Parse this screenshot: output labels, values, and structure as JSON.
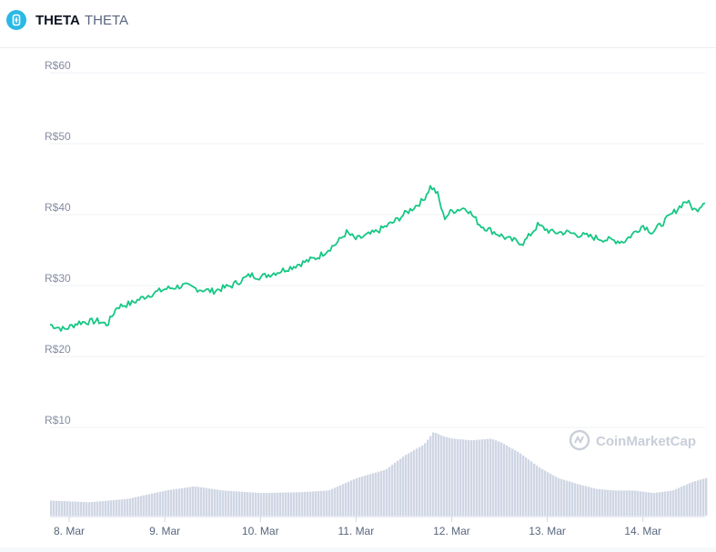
{
  "header": {
    "name": "THETA",
    "symbol": "THETA",
    "logo_icon": "theta-token-icon",
    "logo_color": "#2ab8e6"
  },
  "watermark": {
    "text": "CoinMarketCap",
    "icon": "coinmarketcap-logo-icon"
  },
  "chart_data": {
    "type": "line",
    "y_axis": {
      "ticks": [
        "R$60",
        "R$50",
        "R$40",
        "R$30",
        "R$20",
        "R$10"
      ],
      "ylim": [
        10,
        60
      ],
      "currency": "R$"
    },
    "x_axis": {
      "ticks": [
        "8. Mar",
        "9. Mar",
        "10. Mar",
        "11. Mar",
        "12. Mar",
        "13. Mar",
        "14. Mar"
      ],
      "range_days": [
        7.8,
        14.65
      ]
    },
    "grid": true,
    "colors": {
      "price_line": "#16c784",
      "volume_bars": "#cfd6e4",
      "gridline": "#eff2f5"
    },
    "series": [
      {
        "name": "Price",
        "x": [
          7.8,
          7.95,
          8.1,
          8.3,
          8.4,
          8.5,
          8.65,
          8.8,
          9.0,
          9.2,
          9.35,
          9.5,
          9.7,
          9.9,
          10.0,
          10.2,
          10.4,
          10.6,
          10.8,
          10.9,
          11.0,
          11.2,
          11.4,
          11.55,
          11.7,
          11.78,
          11.85,
          11.92,
          12.0,
          12.15,
          12.3,
          12.45,
          12.6,
          12.75,
          12.9,
          13.05,
          13.2,
          13.4,
          13.6,
          13.8,
          14.0,
          14.1,
          14.3,
          14.45,
          14.55,
          14.65
        ],
        "y": [
          24.5,
          23.8,
          24.8,
          25.0,
          24.5,
          27.0,
          27.5,
          28.5,
          29.5,
          30.0,
          29.5,
          29.2,
          30.0,
          31.5,
          31.2,
          32.0,
          33.0,
          34.0,
          36.0,
          37.5,
          36.5,
          37.5,
          39.0,
          40.5,
          42.0,
          44.0,
          43.0,
          39.5,
          40.5,
          41.0,
          38.5,
          37.5,
          36.5,
          36.0,
          38.5,
          37.5,
          37.5,
          37.0,
          36.5,
          36.2,
          38.5,
          37.5,
          40.0,
          42.0,
          40.5,
          42.0
        ]
      }
    ],
    "volume_series": {
      "name": "Volume",
      "x": [
        7.8,
        8.2,
        8.6,
        9.0,
        9.3,
        9.6,
        10.0,
        10.4,
        10.7,
        11.0,
        11.3,
        11.5,
        11.7,
        11.8,
        11.9,
        12.0,
        12.2,
        12.4,
        12.5,
        12.7,
        12.9,
        13.1,
        13.3,
        13.5,
        13.7,
        13.9,
        14.1,
        14.3,
        14.5,
        14.65
      ],
      "relative_height": [
        0.18,
        0.16,
        0.2,
        0.3,
        0.35,
        0.3,
        0.27,
        0.28,
        0.3,
        0.45,
        0.55,
        0.72,
        0.85,
        1.0,
        0.95,
        0.92,
        0.9,
        0.92,
        0.88,
        0.75,
        0.58,
        0.45,
        0.38,
        0.32,
        0.3,
        0.3,
        0.27,
        0.3,
        0.4,
        0.45
      ]
    }
  }
}
